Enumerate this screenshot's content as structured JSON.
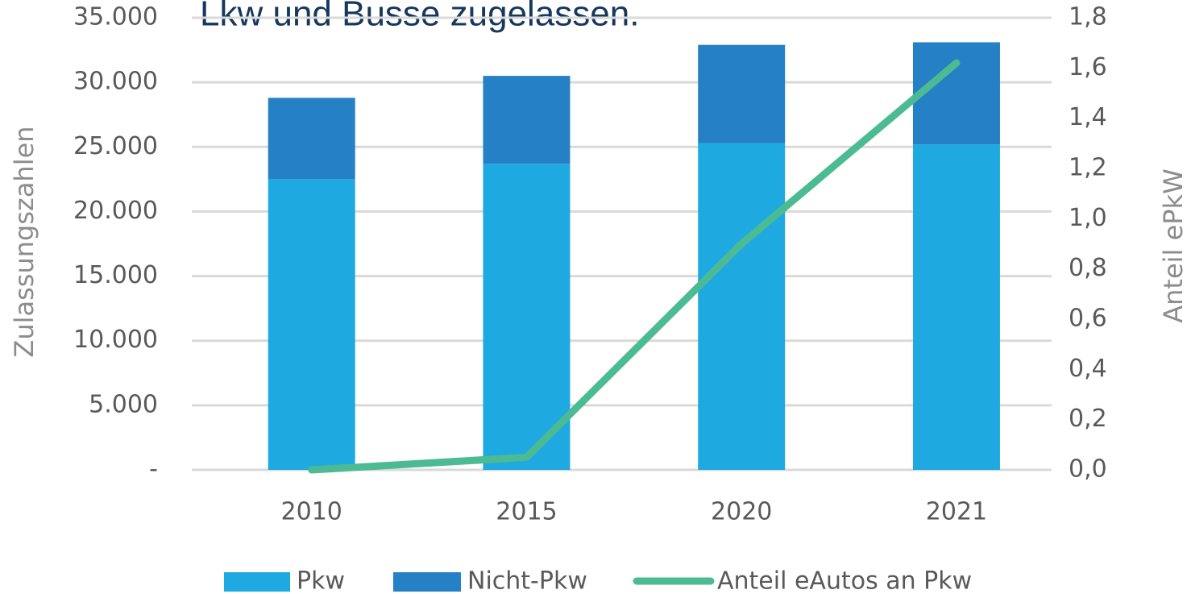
{
  "chart_data": {
    "type": "bar",
    "title": "Lkw und Busse zugelassen.",
    "y_label": "Zulassungszahlen",
    "y2_label": "Anteil ePkW",
    "categories": [
      "2010",
      "2015",
      "2020",
      "2021"
    ],
    "stacked": true,
    "series": [
      {
        "name": "Pkw",
        "type": "bar",
        "color": "#1fa9e1",
        "values": [
          22500,
          23700,
          25300,
          25200
        ]
      },
      {
        "name": "Nicht-Pkw",
        "type": "bar",
        "color": "#2680c5",
        "values": [
          6300,
          6800,
          7600,
          7900
        ]
      },
      {
        "name": "Anteil eAutos an Pkw",
        "type": "line",
        "axis": "y2",
        "color": "#4cbb93",
        "values": [
          0.0,
          0.05,
          0.9,
          1.62
        ]
      }
    ],
    "ylim": [
      0,
      35000
    ],
    "yticks": [
      {
        "value": 0,
        "label": "-"
      },
      {
        "value": 5000,
        "label": "5.000"
      },
      {
        "value": 10000,
        "label": "10.000"
      },
      {
        "value": 15000,
        "label": "15.000"
      },
      {
        "value": 20000,
        "label": "20.000"
      },
      {
        "value": 25000,
        "label": "25.000"
      },
      {
        "value": 30000,
        "label": "30.000"
      },
      {
        "value": 35000,
        "label": "35.000"
      }
    ],
    "y2lim": [
      0,
      1.8
    ],
    "y2ticks": [
      {
        "value": 0,
        "label": "0,0"
      },
      {
        "value": 0.2,
        "label": "0,2"
      },
      {
        "value": 0.4,
        "label": "0,4"
      },
      {
        "value": 0.6,
        "label": "0,6"
      },
      {
        "value": 0.8,
        "label": "0,8"
      },
      {
        "value": 1.0,
        "label": "1,0"
      },
      {
        "value": 1.2,
        "label": "1,2"
      },
      {
        "value": 1.4,
        "label": "1,4"
      },
      {
        "value": 1.6,
        "label": "1,6"
      },
      {
        "value": 1.8,
        "label": "1,8"
      }
    ],
    "grid": true
  }
}
